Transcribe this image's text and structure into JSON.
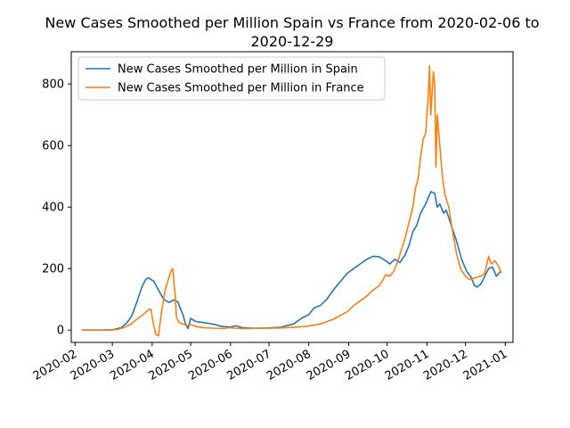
{
  "chart_data": {
    "type": "line",
    "title_lines": [
      "New Cases Smoothed per Million Spain vs France from 2020-02-06 to",
      "2020-12-29"
    ],
    "xlabel": "",
    "ylabel": "",
    "x_tick_labels": [
      "2020-02",
      "2020-03",
      "2020-04",
      "2020-05",
      "2020-06",
      "2020-07",
      "2020-08",
      "2020-09",
      "2020-10",
      "2020-11",
      "2020-12",
      "2021-01"
    ],
    "y_ticks": [
      0,
      200,
      400,
      600,
      800
    ],
    "ylim": [
      -40,
      905
    ],
    "xlim": [
      "2020-01-29",
      "2021-01-07"
    ],
    "grid": false,
    "legend_position": "top-left",
    "series": [
      {
        "name": "New Cases Smoothed per Million in Spain",
        "color": "#1f77b4",
        "points": [
          [
            "2020-02-06",
            0
          ],
          [
            "2020-02-20",
            0
          ],
          [
            "2020-03-01",
            1
          ],
          [
            "2020-03-08",
            8
          ],
          [
            "2020-03-12",
            22
          ],
          [
            "2020-03-16",
            45
          ],
          [
            "2020-03-20",
            90
          ],
          [
            "2020-03-24",
            140
          ],
          [
            "2020-03-27",
            165
          ],
          [
            "2020-03-29",
            170
          ],
          [
            "2020-04-02",
            160
          ],
          [
            "2020-04-06",
            130
          ],
          [
            "2020-04-10",
            100
          ],
          [
            "2020-04-14",
            90
          ],
          [
            "2020-04-18",
            98
          ],
          [
            "2020-04-21",
            92
          ],
          [
            "2020-04-23",
            70
          ],
          [
            "2020-04-25",
            50
          ],
          [
            "2020-04-27",
            20
          ],
          [
            "2020-04-29",
            5
          ],
          [
            "2020-05-01",
            38
          ],
          [
            "2020-05-05",
            28
          ],
          [
            "2020-05-10",
            25
          ],
          [
            "2020-05-15",
            22
          ],
          [
            "2020-05-20",
            18
          ],
          [
            "2020-05-25",
            12
          ],
          [
            "2020-06-01",
            10
          ],
          [
            "2020-06-05",
            14
          ],
          [
            "2020-06-10",
            8
          ],
          [
            "2020-06-20",
            6
          ],
          [
            "2020-06-30",
            7
          ],
          [
            "2020-07-10",
            9
          ],
          [
            "2020-07-20",
            20
          ],
          [
            "2020-07-27",
            40
          ],
          [
            "2020-08-01",
            50
          ],
          [
            "2020-08-05",
            72
          ],
          [
            "2020-08-10",
            80
          ],
          [
            "2020-08-15",
            100
          ],
          [
            "2020-08-20",
            130
          ],
          [
            "2020-08-25",
            155
          ],
          [
            "2020-08-31",
            185
          ],
          [
            "2020-09-05",
            200
          ],
          [
            "2020-09-10",
            215
          ],
          [
            "2020-09-15",
            230
          ],
          [
            "2020-09-20",
            240
          ],
          [
            "2020-09-25",
            238
          ],
          [
            "2020-09-30",
            225
          ],
          [
            "2020-10-03",
            215
          ],
          [
            "2020-10-07",
            230
          ],
          [
            "2020-10-11",
            220
          ],
          [
            "2020-10-15",
            245
          ],
          [
            "2020-10-18",
            275
          ],
          [
            "2020-10-21",
            320
          ],
          [
            "2020-10-24",
            340
          ],
          [
            "2020-10-27",
            380
          ],
          [
            "2020-10-31",
            410
          ],
          [
            "2020-11-04",
            450
          ],
          [
            "2020-11-07",
            445
          ],
          [
            "2020-11-09",
            400
          ],
          [
            "2020-11-11",
            410
          ],
          [
            "2020-11-14",
            380
          ],
          [
            "2020-11-16",
            390
          ],
          [
            "2020-11-20",
            340
          ],
          [
            "2020-11-24",
            290
          ],
          [
            "2020-11-28",
            230
          ],
          [
            "2020-12-02",
            190
          ],
          [
            "2020-12-05",
            175
          ],
          [
            "2020-12-08",
            145
          ],
          [
            "2020-12-10",
            140
          ],
          [
            "2020-12-13",
            150
          ],
          [
            "2020-12-16",
            175
          ],
          [
            "2020-12-19",
            200
          ],
          [
            "2020-12-22",
            205
          ],
          [
            "2020-12-25",
            175
          ],
          [
            "2020-12-28",
            190
          ]
        ]
      },
      {
        "name": "New Cases Smoothed per Million in France",
        "color": "#ff7f0e",
        "points": [
          [
            "2020-02-06",
            0
          ],
          [
            "2020-02-29",
            0
          ],
          [
            "2020-03-05",
            2
          ],
          [
            "2020-03-10",
            8
          ],
          [
            "2020-03-15",
            18
          ],
          [
            "2020-03-20",
            35
          ],
          [
            "2020-03-25",
            50
          ],
          [
            "2020-03-29",
            66
          ],
          [
            "2020-03-31",
            68
          ],
          [
            "2020-04-02",
            20
          ],
          [
            "2020-04-04",
            -15
          ],
          [
            "2020-04-06",
            -18
          ],
          [
            "2020-04-08",
            50
          ],
          [
            "2020-04-11",
            130
          ],
          [
            "2020-04-14",
            170
          ],
          [
            "2020-04-16",
            195
          ],
          [
            "2020-04-17",
            200
          ],
          [
            "2020-04-19",
            110
          ],
          [
            "2020-04-20",
            40
          ],
          [
            "2020-04-22",
            25
          ],
          [
            "2020-04-25",
            20
          ],
          [
            "2020-04-28",
            15
          ],
          [
            "2020-05-01",
            18
          ],
          [
            "2020-05-05",
            12
          ],
          [
            "2020-05-10",
            8
          ],
          [
            "2020-05-20",
            6
          ],
          [
            "2020-05-27",
            5
          ],
          [
            "2020-05-31",
            8
          ],
          [
            "2020-06-05",
            6
          ],
          [
            "2020-06-10",
            5
          ],
          [
            "2020-06-15",
            5
          ],
          [
            "2020-06-20",
            6
          ],
          [
            "2020-06-30",
            6
          ],
          [
            "2020-07-10",
            7
          ],
          [
            "2020-07-20",
            9
          ],
          [
            "2020-07-30",
            12
          ],
          [
            "2020-08-10",
            20
          ],
          [
            "2020-08-20",
            35
          ],
          [
            "2020-08-31",
            60
          ],
          [
            "2020-09-05",
            80
          ],
          [
            "2020-09-10",
            95
          ],
          [
            "2020-09-15",
            110
          ],
          [
            "2020-09-20",
            130
          ],
          [
            "2020-09-25",
            145
          ],
          [
            "2020-09-30",
            180
          ],
          [
            "2020-10-03",
            175
          ],
          [
            "2020-10-06",
            190
          ],
          [
            "2020-10-09",
            220
          ],
          [
            "2020-10-12",
            260
          ],
          [
            "2020-10-15",
            300
          ],
          [
            "2020-10-18",
            350
          ],
          [
            "2020-10-21",
            400
          ],
          [
            "2020-10-23",
            460
          ],
          [
            "2020-10-25",
            490
          ],
          [
            "2020-10-27",
            560
          ],
          [
            "2020-10-29",
            620
          ],
          [
            "2020-10-31",
            640
          ],
          [
            "2020-11-02",
            760
          ],
          [
            "2020-11-03",
            860
          ],
          [
            "2020-11-04",
            700
          ],
          [
            "2020-11-06",
            840
          ],
          [
            "2020-11-07",
            800
          ],
          [
            "2020-11-08",
            530
          ],
          [
            "2020-11-09",
            700
          ],
          [
            "2020-11-11",
            600
          ],
          [
            "2020-11-13",
            500
          ],
          [
            "2020-11-15",
            440
          ],
          [
            "2020-11-18",
            400
          ],
          [
            "2020-11-21",
            320
          ],
          [
            "2020-11-24",
            250
          ],
          [
            "2020-11-27",
            200
          ],
          [
            "2020-12-01",
            175
          ],
          [
            "2020-12-04",
            165
          ],
          [
            "2020-12-07",
            168
          ],
          [
            "2020-12-10",
            172
          ],
          [
            "2020-12-13",
            175
          ],
          [
            "2020-12-16",
            185
          ],
          [
            "2020-12-19",
            240
          ],
          [
            "2020-12-21",
            215
          ],
          [
            "2020-12-24",
            225
          ],
          [
            "2020-12-27",
            205
          ],
          [
            "2020-12-29",
            185
          ]
        ]
      }
    ]
  }
}
